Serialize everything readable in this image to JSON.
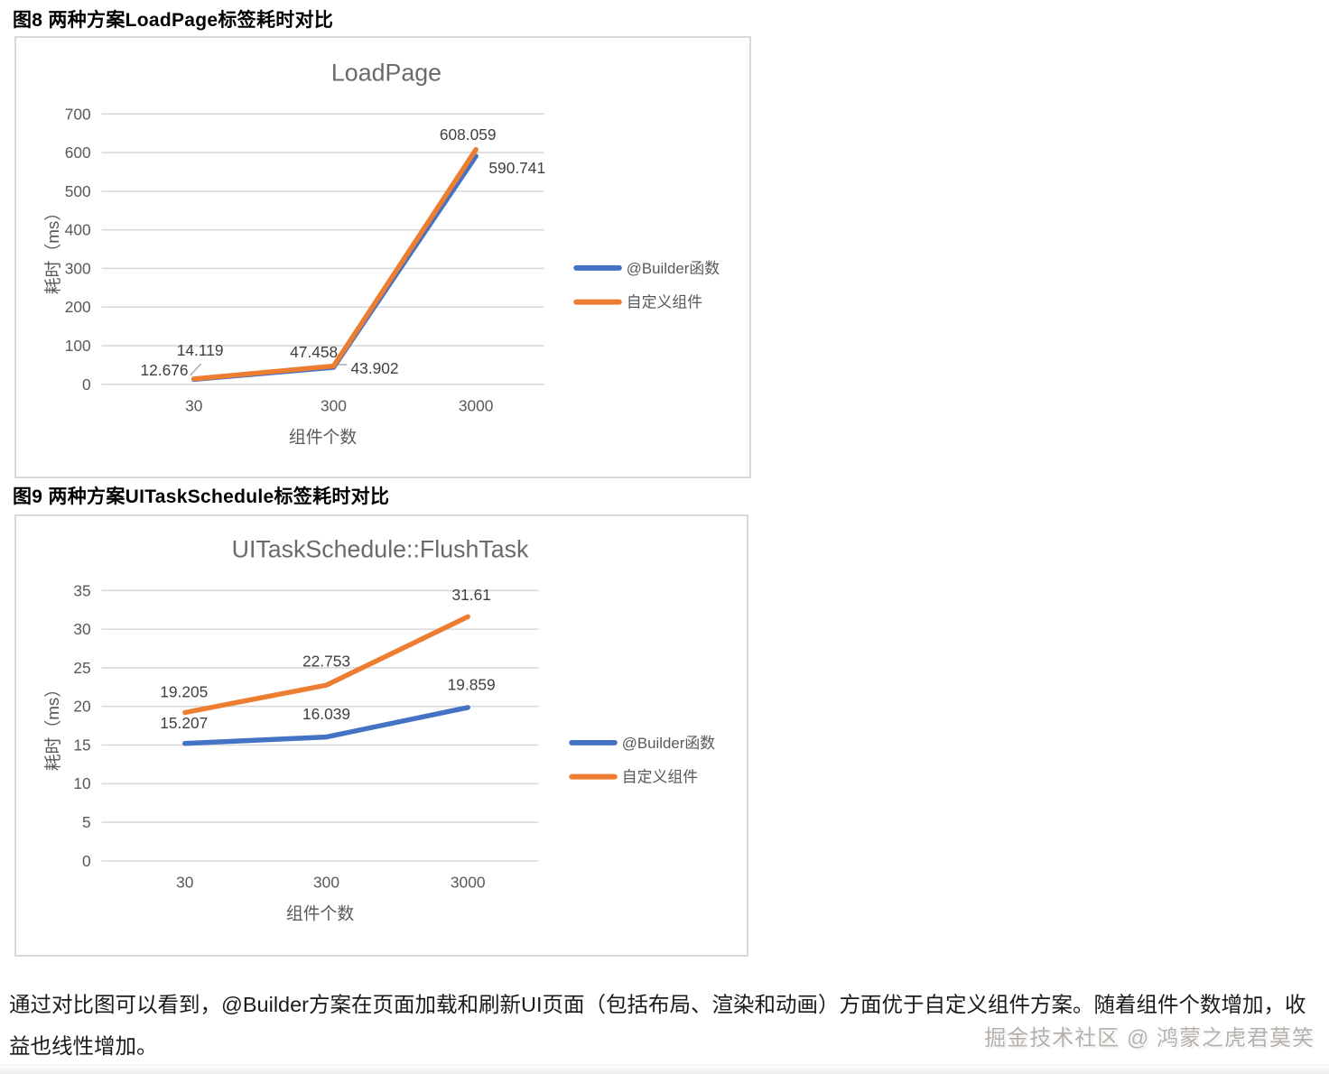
{
  "page": {
    "caption1": "图8 两种方案LoadPage标签耗时对比",
    "caption2": "图9 两种方案UITaskSchedule标签耗时对比",
    "paragraph": "通过对比图可以看到，@Builder方案在页面加载和刷新UI页面（包括布局、渲染和动画）方面优于自定义组件方案。随着组件个数增加，收益也线性增加。",
    "watermark": "掘金技术社区 @ 鸿蒙之虎君莫笑"
  },
  "colors": {
    "builder_blue": "#4472C4",
    "custom_orange": "#ED7D31",
    "gridline": "#D9D9D9",
    "axis_text": "#595959",
    "title_text": "#6A6A6A",
    "label_text": "#404040",
    "leader_gray": "#A6A6A6"
  },
  "chart_data": [
    {
      "type": "line",
      "title": "LoadPage",
      "xlabel": "组件个数",
      "ylabel": "耗时（ms）",
      "categories": [
        "30",
        "300",
        "3000"
      ],
      "series": [
        {
          "name": "@Builder函数",
          "color_key": "builder_blue",
          "values": [
            12.676,
            43.902,
            590.741
          ]
        },
        {
          "name": "自定义组件",
          "color_key": "custom_orange",
          "values": [
            14.119,
            47.458,
            608.059
          ]
        }
      ],
      "ylim": [
        0,
        700
      ],
      "ytick_step": 100,
      "grid": true,
      "legend_position": "right"
    },
    {
      "type": "line",
      "title": "UITaskSchedule::FlushTask",
      "xlabel": "组件个数",
      "ylabel": "耗时（ms）",
      "categories": [
        "30",
        "300",
        "3000"
      ],
      "series": [
        {
          "name": "@Builder函数",
          "color_key": "builder_blue",
          "values": [
            15.207,
            16.039,
            19.859
          ]
        },
        {
          "name": "自定义组件",
          "color_key": "custom_orange",
          "values": [
            19.205,
            22.753,
            31.61
          ]
        }
      ],
      "ylim": [
        0,
        35
      ],
      "ytick_step": 5,
      "grid": true,
      "legend_position": "right"
    }
  ]
}
